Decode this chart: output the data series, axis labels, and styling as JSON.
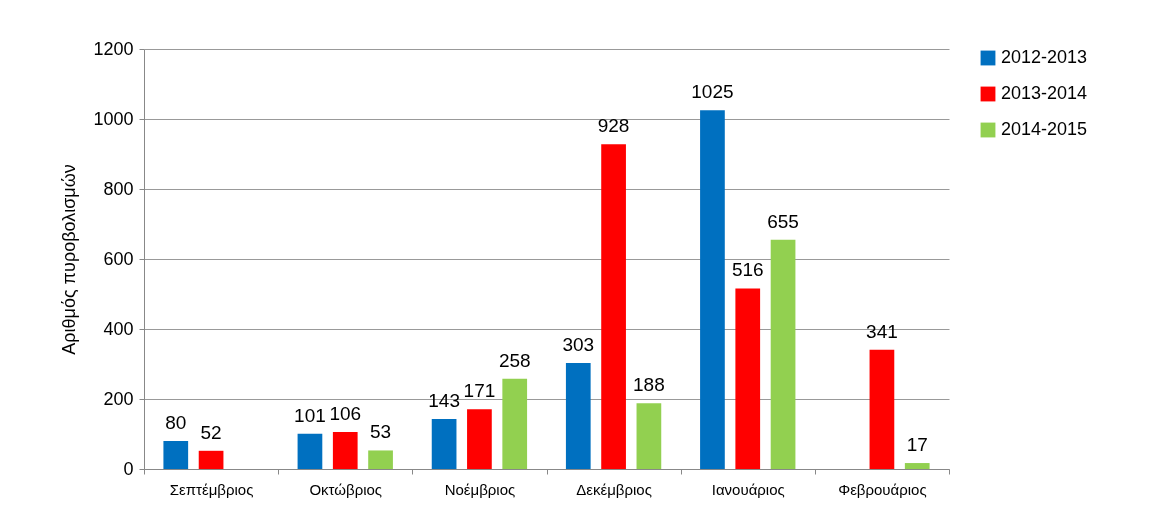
{
  "chart_data": {
    "type": "bar",
    "ylabel": "Αριθμός πυροβολισμών",
    "categories": [
      "Σεπτέμβριος",
      "Οκτώβριος",
      "Νοέμβριος",
      "Δεκέμβριος",
      "Ιανουάριος",
      "Φεβρουάριος"
    ],
    "series": [
      {
        "name": "2012-2013",
        "color": "#0070c0",
        "values": [
          80,
          101,
          143,
          303,
          1025,
          null
        ]
      },
      {
        "name": "2013-2014",
        "color": "#ff0000",
        "values": [
          52,
          106,
          171,
          928,
          516,
          341
        ]
      },
      {
        "name": "2014-2015",
        "color": "#92d050",
        "values": [
          null,
          53,
          258,
          188,
          655,
          17
        ]
      }
    ],
    "ylim": [
      0,
      1200
    ],
    "yticks": [
      0,
      200,
      400,
      600,
      800,
      1000,
      1200
    ],
    "grid": "y",
    "legend": "right",
    "data_labels": true
  }
}
